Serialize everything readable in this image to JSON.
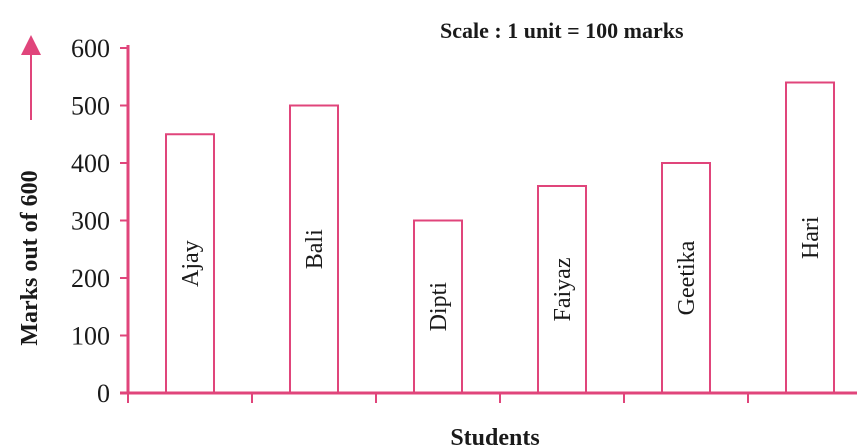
{
  "chart_data": {
    "type": "bar",
    "categories": [
      "Ajay",
      "Bali",
      "Dipti",
      "Faiyaz",
      "Geetika",
      "Hari"
    ],
    "values": [
      450,
      500,
      300,
      360,
      400,
      540
    ],
    "title": "",
    "scale_note": "Scale : 1 unit = 100 marks",
    "xlabel": "Students",
    "ylabel": "Marks out of 600",
    "ylim": [
      0,
      600
    ],
    "yticks": [
      "0",
      "100",
      "200",
      "300",
      "400",
      "500",
      "600"
    ],
    "bar_labels_inside": true,
    "grid": false,
    "colors": {
      "axis": "#e0457b",
      "bar_outline": "#e0457b",
      "bar_fill": "#ffffff",
      "text": "#1a1a1a"
    }
  }
}
